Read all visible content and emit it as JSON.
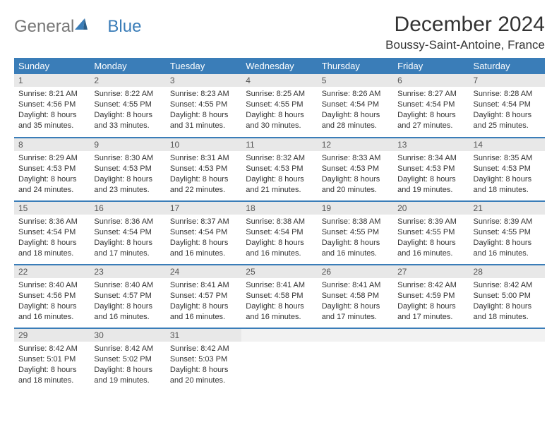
{
  "logo": {
    "text1": "General",
    "text2": "Blue"
  },
  "title": "December 2024",
  "location": "Boussy-Saint-Antoine, France",
  "colors": {
    "header_bg": "#3a7db8",
    "header_text": "#ffffff",
    "daynum_bg": "#e8e8e8",
    "border": "#3a7db8",
    "logo_gray": "#777777",
    "logo_blue": "#3a7db8",
    "body_text": "#333333"
  },
  "day_headers": [
    "Sunday",
    "Monday",
    "Tuesday",
    "Wednesday",
    "Thursday",
    "Friday",
    "Saturday"
  ],
  "weeks": [
    [
      {
        "n": "1",
        "sr": "8:21 AM",
        "ss": "4:56 PM",
        "dl": "8 hours and 35 minutes."
      },
      {
        "n": "2",
        "sr": "8:22 AM",
        "ss": "4:55 PM",
        "dl": "8 hours and 33 minutes."
      },
      {
        "n": "3",
        "sr": "8:23 AM",
        "ss": "4:55 PM",
        "dl": "8 hours and 31 minutes."
      },
      {
        "n": "4",
        "sr": "8:25 AM",
        "ss": "4:55 PM",
        "dl": "8 hours and 30 minutes."
      },
      {
        "n": "5",
        "sr": "8:26 AM",
        "ss": "4:54 PM",
        "dl": "8 hours and 28 minutes."
      },
      {
        "n": "6",
        "sr": "8:27 AM",
        "ss": "4:54 PM",
        "dl": "8 hours and 27 minutes."
      },
      {
        "n": "7",
        "sr": "8:28 AM",
        "ss": "4:54 PM",
        "dl": "8 hours and 25 minutes."
      }
    ],
    [
      {
        "n": "8",
        "sr": "8:29 AM",
        "ss": "4:53 PM",
        "dl": "8 hours and 24 minutes."
      },
      {
        "n": "9",
        "sr": "8:30 AM",
        "ss": "4:53 PM",
        "dl": "8 hours and 23 minutes."
      },
      {
        "n": "10",
        "sr": "8:31 AM",
        "ss": "4:53 PM",
        "dl": "8 hours and 22 minutes."
      },
      {
        "n": "11",
        "sr": "8:32 AM",
        "ss": "4:53 PM",
        "dl": "8 hours and 21 minutes."
      },
      {
        "n": "12",
        "sr": "8:33 AM",
        "ss": "4:53 PM",
        "dl": "8 hours and 20 minutes."
      },
      {
        "n": "13",
        "sr": "8:34 AM",
        "ss": "4:53 PM",
        "dl": "8 hours and 19 minutes."
      },
      {
        "n": "14",
        "sr": "8:35 AM",
        "ss": "4:53 PM",
        "dl": "8 hours and 18 minutes."
      }
    ],
    [
      {
        "n": "15",
        "sr": "8:36 AM",
        "ss": "4:54 PM",
        "dl": "8 hours and 18 minutes."
      },
      {
        "n": "16",
        "sr": "8:36 AM",
        "ss": "4:54 PM",
        "dl": "8 hours and 17 minutes."
      },
      {
        "n": "17",
        "sr": "8:37 AM",
        "ss": "4:54 PM",
        "dl": "8 hours and 16 minutes."
      },
      {
        "n": "18",
        "sr": "8:38 AM",
        "ss": "4:54 PM",
        "dl": "8 hours and 16 minutes."
      },
      {
        "n": "19",
        "sr": "8:38 AM",
        "ss": "4:55 PM",
        "dl": "8 hours and 16 minutes."
      },
      {
        "n": "20",
        "sr": "8:39 AM",
        "ss": "4:55 PM",
        "dl": "8 hours and 16 minutes."
      },
      {
        "n": "21",
        "sr": "8:39 AM",
        "ss": "4:55 PM",
        "dl": "8 hours and 16 minutes."
      }
    ],
    [
      {
        "n": "22",
        "sr": "8:40 AM",
        "ss": "4:56 PM",
        "dl": "8 hours and 16 minutes."
      },
      {
        "n": "23",
        "sr": "8:40 AM",
        "ss": "4:57 PM",
        "dl": "8 hours and 16 minutes."
      },
      {
        "n": "24",
        "sr": "8:41 AM",
        "ss": "4:57 PM",
        "dl": "8 hours and 16 minutes."
      },
      {
        "n": "25",
        "sr": "8:41 AM",
        "ss": "4:58 PM",
        "dl": "8 hours and 16 minutes."
      },
      {
        "n": "26",
        "sr": "8:41 AM",
        "ss": "4:58 PM",
        "dl": "8 hours and 17 minutes."
      },
      {
        "n": "27",
        "sr": "8:42 AM",
        "ss": "4:59 PM",
        "dl": "8 hours and 17 minutes."
      },
      {
        "n": "28",
        "sr": "8:42 AM",
        "ss": "5:00 PM",
        "dl": "8 hours and 18 minutes."
      }
    ],
    [
      {
        "n": "29",
        "sr": "8:42 AM",
        "ss": "5:01 PM",
        "dl": "8 hours and 18 minutes."
      },
      {
        "n": "30",
        "sr": "8:42 AM",
        "ss": "5:02 PM",
        "dl": "8 hours and 19 minutes."
      },
      {
        "n": "31",
        "sr": "8:42 AM",
        "ss": "5:03 PM",
        "dl": "8 hours and 20 minutes."
      },
      {
        "empty": true
      },
      {
        "empty": true
      },
      {
        "empty": true
      },
      {
        "empty": true
      }
    ]
  ],
  "labels": {
    "sunrise": "Sunrise: ",
    "sunset": "Sunset: ",
    "daylight": "Daylight: "
  }
}
